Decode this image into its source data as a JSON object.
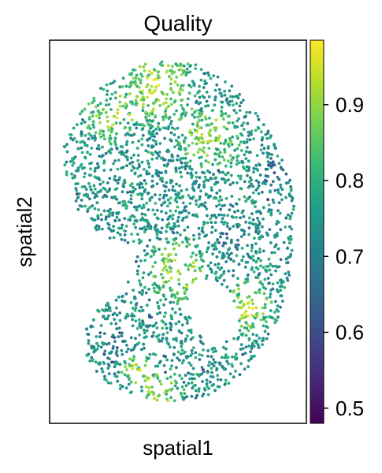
{
  "chart_data": {
    "type": "scatter",
    "title": "Quality",
    "xlabel": "spatial1",
    "ylabel": "spatial2",
    "x_ticks_shown": false,
    "y_ticks_shown": false,
    "grid": false,
    "legend": "none",
    "colorbar": {
      "label": "",
      "placement": "right",
      "colormap": "viridis",
      "range": [
        0.48,
        0.985
      ],
      "ticks": [
        0.5,
        0.6,
        0.7,
        0.8,
        0.9
      ],
      "tick_labels": [
        "0.5",
        "0.6",
        "0.7",
        "0.8",
        "0.9"
      ]
    },
    "series": [
      {
        "value_name": "Quality",
        "points": "approx. 5000 spots outlining a curled embryo-shaped tissue section; values range ~0.48–0.985, highest (yellow) in head, heart region and lower-right body, lower (blue/teal) along edges and in the central trunk"
      }
    ],
    "viridis_stops": [
      "#440154",
      "#482878",
      "#3e4989",
      "#31688e",
      "#26828e",
      "#1f9e89",
      "#35b779",
      "#6ece58",
      "#b5de2b",
      "#fde725"
    ]
  }
}
